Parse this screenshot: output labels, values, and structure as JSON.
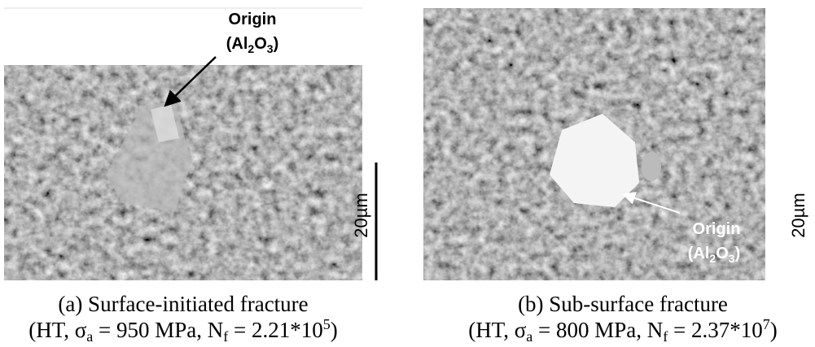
{
  "panels": [
    {
      "origin": {
        "label": "Origin",
        "formula": [
          "(Al",
          "2",
          "O",
          "3",
          ")"
        ]
      },
      "scale_bar": "20µm",
      "caption": {
        "title": "(a) Surface-initiated fracture",
        "params": [
          "(HT, σ",
          "a",
          " = 950 MPa, N",
          "f",
          " = 2.21*10",
          "5",
          ")"
        ]
      }
    },
    {
      "origin": {
        "label": "Origin",
        "formula": [
          "(Al",
          "2",
          "O",
          "3",
          ")"
        ]
      },
      "scale_bar": "20µm",
      "caption": {
        "title": "(b) Sub-surface fracture",
        "params": [
          "(HT, σ",
          "a",
          " = 800 MPa, N",
          "f",
          " = 2.37*10",
          "7",
          ")"
        ]
      }
    }
  ]
}
